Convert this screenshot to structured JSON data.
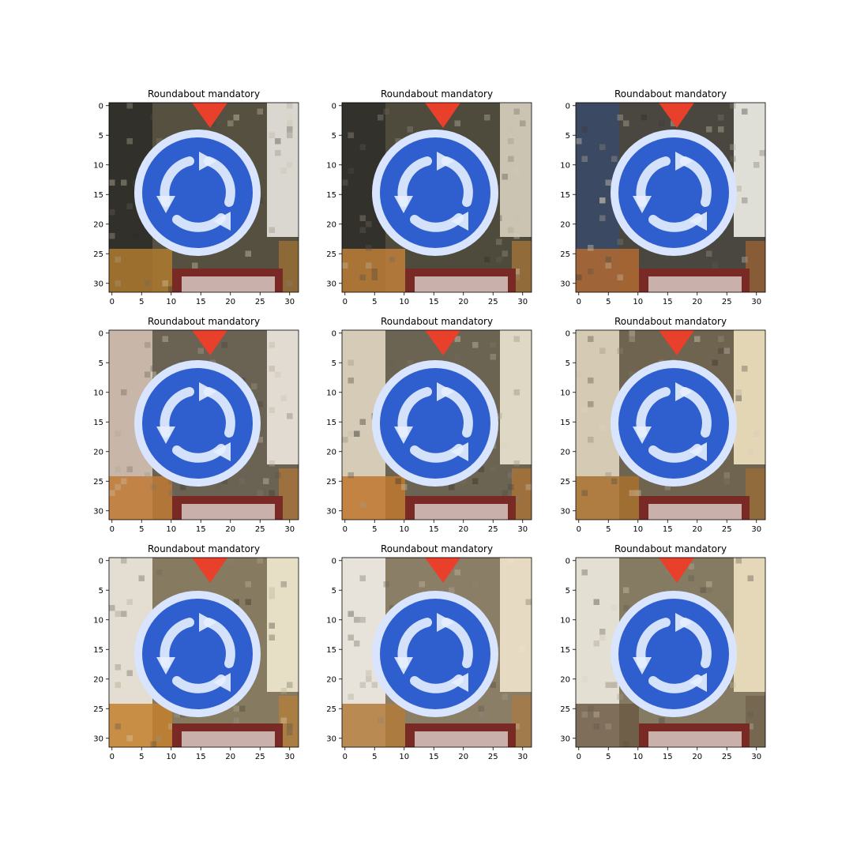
{
  "figure": {
    "panels": [
      {
        "title": "Roundabout mandatory",
        "bg": "#55503f",
        "left_tone": "#2b2a27",
        "right_tone": "#e8e6e0",
        "bottom_tone": "#b07a30"
      },
      {
        "title": "Roundabout mandatory",
        "bg": "#4f4b3c",
        "left_tone": "#2e2d29",
        "right_tone": "#d8d2bf",
        "bottom_tone": "#c0803a"
      },
      {
        "title": "Roundabout mandatory",
        "bg": "#4a4740",
        "left_tone": "#3a4a6a",
        "right_tone": "#f0eee8",
        "bottom_tone": "#b06a30"
      },
      {
        "title": "Roundabout mandatory",
        "bg": "#6a6252",
        "left_tone": "#d8c7b8",
        "right_tone": "#efe9df",
        "bottom_tone": "#c07a35"
      },
      {
        "title": "Roundabout mandatory",
        "bg": "#6c6452",
        "left_tone": "#e7ddc8",
        "right_tone": "#ece4d2",
        "bottom_tone": "#c0782f"
      },
      {
        "title": "Roundabout mandatory",
        "bg": "#6e6450",
        "left_tone": "#e8dcc4",
        "right_tone": "#efe2c0",
        "bottom_tone": "#a8702e"
      },
      {
        "title": "Roundabout mandatory",
        "bg": "#867a60",
        "left_tone": "#f3efe6",
        "right_tone": "#f2ead0",
        "bottom_tone": "#c3802e"
      },
      {
        "title": "Roundabout mandatory",
        "bg": "#8a7e66",
        "left_tone": "#f7f4ee",
        "right_tone": "#efe6cc",
        "bottom_tone": "#b07a38"
      },
      {
        "title": "Roundabout mandatory",
        "bg": "#857a62",
        "left_tone": "#f4f1e8",
        "right_tone": "#eee2c2",
        "bottom_tone": "#6c5a44"
      }
    ],
    "x_ticks": [
      "0",
      "5",
      "10",
      "15",
      "20",
      "25",
      "30"
    ],
    "y_ticks": [
      "0",
      "5",
      "10",
      "15",
      "20",
      "25",
      "30"
    ],
    "colors": {
      "sign_blue": "#2f5fce",
      "sign_ring": "#d9e4ff",
      "arrow_white": "#e6efff",
      "triangle_red": "#e8402a",
      "plate_red": "#7a2a25",
      "plate_inner": "#c9b0aa"
    }
  }
}
